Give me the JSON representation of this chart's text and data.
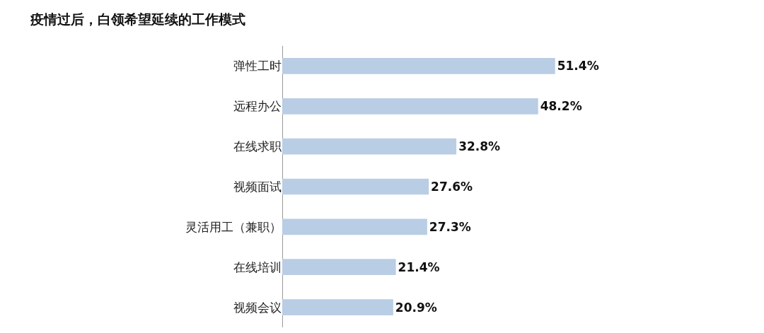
{
  "chart_data": {
    "type": "bar",
    "orientation": "horizontal",
    "title": "疫情过后，白领希望延续的工作模式",
    "categories": [
      "弹性工时",
      "远程办公",
      "在线求职",
      "视频面试",
      "灵活用工（兼职）",
      "在线培训",
      "视频会议"
    ],
    "values": [
      51.4,
      48.2,
      32.8,
      27.6,
      27.3,
      21.4,
      20.9
    ],
    "value_labels": [
      "51.4%",
      "48.2%",
      "32.8%",
      "27.6%",
      "27.3%",
      "21.4%",
      "20.9%"
    ],
    "color": "#b9cde5"
  }
}
